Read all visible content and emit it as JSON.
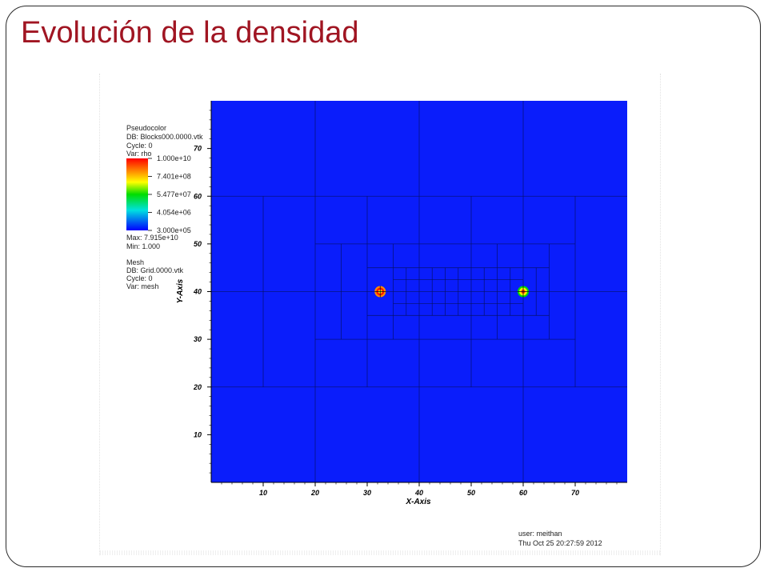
{
  "slide": {
    "title": "Evolución de la densidad"
  },
  "legend": {
    "pseudocolor": {
      "heading": "Pseudocolor",
      "db": "DB: Blocks000.0000.vtk",
      "cycle": "Cycle: 0",
      "var": "Var: rho",
      "ticks": [
        "1.000e+10",
        "7.401e+08",
        "5.477e+07",
        "4.054e+06",
        "3.000e+05"
      ],
      "max": "Max:  7.915e+10",
      "min": "Min:  1.000"
    },
    "mesh": {
      "heading": "Mesh",
      "db": "DB: Grid.0000.vtk",
      "cycle": "Cycle: 0",
      "var": "Var: mesh"
    }
  },
  "footer": {
    "user": "user: meithan",
    "date": "Thu Oct 25 20:27:59 2012"
  },
  "chart_data": {
    "type": "heatmap",
    "xlabel": "X-Axis",
    "ylabel": "Y-Axis",
    "xlim": [
      0,
      80
    ],
    "ylim": [
      0,
      80
    ],
    "xticks": [
      10,
      20,
      30,
      40,
      50,
      60,
      70
    ],
    "yticks": [
      10,
      20,
      30,
      40,
      50,
      60,
      70
    ],
    "variable": "rho",
    "colorscale": "log",
    "colorbar_range": [
      300000,
      10000000000
    ],
    "background_value": 300000,
    "hotspots": [
      {
        "x": 32.5,
        "y": 40
      },
      {
        "x": 60,
        "y": 40
      }
    ],
    "mesh_lines": {
      "vertical": [
        {
          "x": 10,
          "y0": 20,
          "y1": 60
        },
        {
          "x": 20,
          "y0": 0,
          "y1": 80
        },
        {
          "x": 25,
          "y0": 30,
          "y1": 50
        },
        {
          "x": 30,
          "y0": 20,
          "y1": 60
        },
        {
          "x": 35,
          "y0": 30,
          "y1": 50
        },
        {
          "x": 37.5,
          "y0": 35,
          "y1": 45
        },
        {
          "x": 40,
          "y0": 0,
          "y1": 80
        },
        {
          "x": 42.5,
          "y0": 35,
          "y1": 45
        },
        {
          "x": 45,
          "y0": 35,
          "y1": 45
        },
        {
          "x": 47.5,
          "y0": 35,
          "y1": 45
        },
        {
          "x": 50,
          "y0": 20,
          "y1": 60
        },
        {
          "x": 52.5,
          "y0": 35,
          "y1": 45
        },
        {
          "x": 55,
          "y0": 30,
          "y1": 50
        },
        {
          "x": 57.5,
          "y0": 35,
          "y1": 45
        },
        {
          "x": 60,
          "y0": 0,
          "y1": 80
        },
        {
          "x": 62.5,
          "y0": 35,
          "y1": 45
        },
        {
          "x": 65,
          "y0": 30,
          "y1": 50
        },
        {
          "x": 70,
          "y0": 20,
          "y1": 60
        }
      ],
      "horizontal": [
        {
          "y": 20,
          "x0": 0,
          "x1": 80
        },
        {
          "y": 30,
          "x0": 20,
          "x1": 70
        },
        {
          "y": 35,
          "x0": 30,
          "x1": 65
        },
        {
          "y": 37.5,
          "x0": 35,
          "x1": 60
        },
        {
          "y": 40,
          "x0": 0,
          "x1": 80
        },
        {
          "y": 42.5,
          "x0": 35,
          "x1": 60
        },
        {
          "y": 45,
          "x0": 30,
          "x1": 65
        },
        {
          "y": 50,
          "x0": 20,
          "x1": 70
        },
        {
          "y": 60,
          "x0": 0,
          "x1": 80
        }
      ]
    }
  }
}
